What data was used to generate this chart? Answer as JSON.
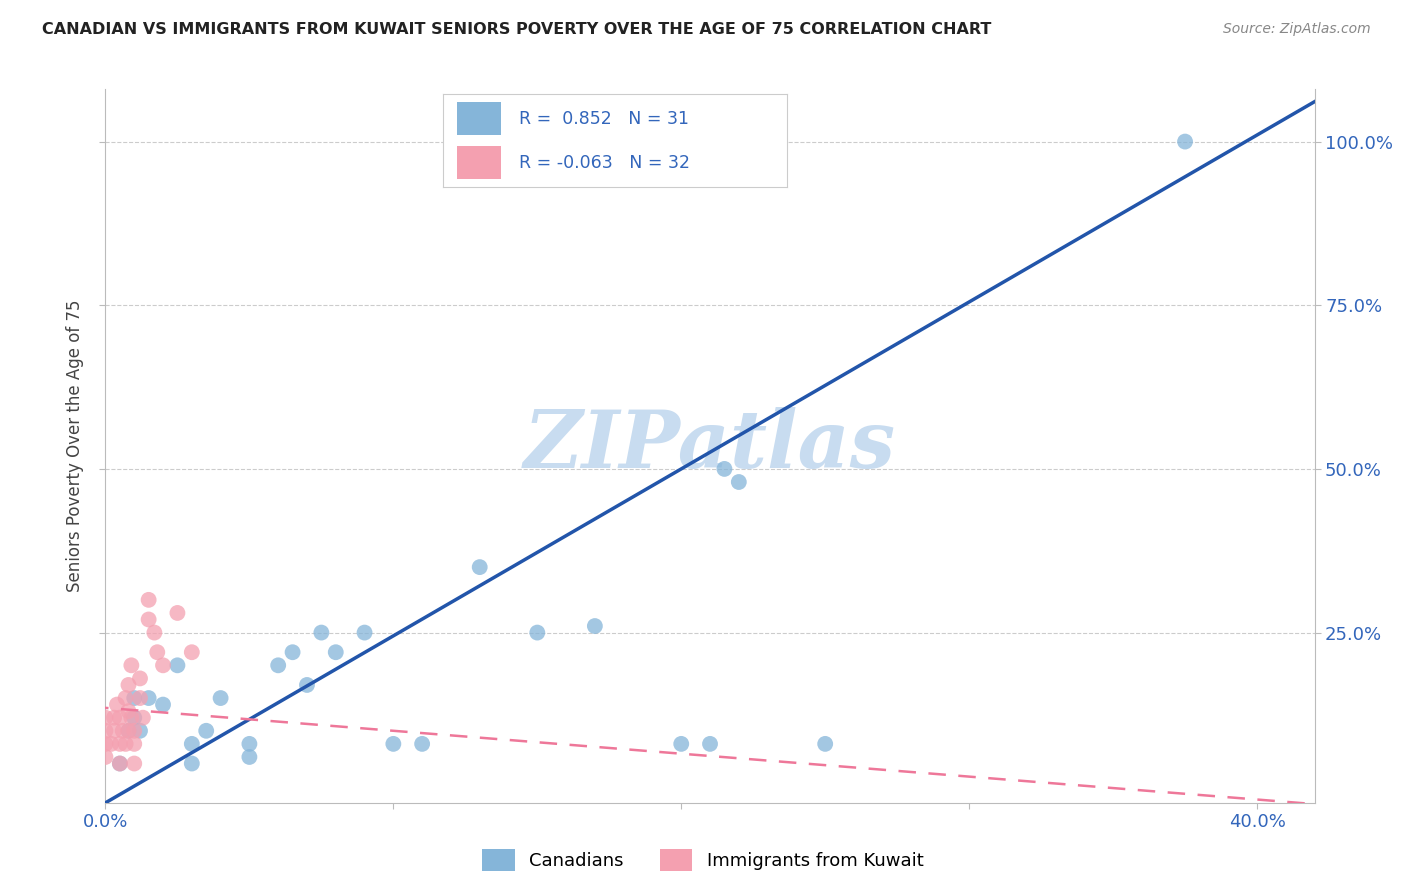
{
  "title": "CANADIAN VS IMMIGRANTS FROM KUWAIT SENIORS POVERTY OVER THE AGE OF 75 CORRELATION CHART",
  "source": "Source: ZipAtlas.com",
  "ylabel": "Seniors Poverty Over the Age of 75",
  "legend_r1_text": "R =  0.852   N = 31",
  "legend_r2_text": "R = -0.063   N = 32",
  "legend_label1": "Canadians",
  "legend_label2": "Immigrants from Kuwait",
  "xlim": [
    0.0,
    0.42
  ],
  "ylim": [
    -0.01,
    1.08
  ],
  "xtick_pos": [
    0.0,
    0.1,
    0.2,
    0.3,
    0.4
  ],
  "xtick_labels": [
    "0.0%",
    "",
    "",
    "",
    "40.0%"
  ],
  "ytick_pos": [
    0.25,
    0.5,
    0.75,
    1.0
  ],
  "ytick_labels": [
    "25.0%",
    "50.0%",
    "75.0%",
    "100.0%"
  ],
  "blue_color": "#85B5D9",
  "pink_color": "#F4A0B0",
  "trendline_blue": "#2255AA",
  "trendline_pink": "#EE7799",
  "watermark_color": "#C8DCF0",
  "canadians_x": [
    0.005,
    0.008,
    0.01,
    0.01,
    0.012,
    0.015,
    0.02,
    0.025,
    0.03,
    0.03,
    0.035,
    0.04,
    0.05,
    0.05,
    0.06,
    0.065,
    0.07,
    0.075,
    0.08,
    0.09,
    0.1,
    0.11,
    0.13,
    0.15,
    0.17,
    0.2,
    0.21,
    0.215,
    0.22,
    0.25,
    0.375
  ],
  "canadians_y": [
    0.05,
    0.1,
    0.12,
    0.15,
    0.1,
    0.15,
    0.14,
    0.2,
    0.05,
    0.08,
    0.1,
    0.15,
    0.08,
    0.06,
    0.2,
    0.22,
    0.17,
    0.25,
    0.22,
    0.25,
    0.08,
    0.08,
    0.35,
    0.25,
    0.26,
    0.08,
    0.08,
    0.5,
    0.48,
    0.08,
    1.0
  ],
  "kuwait_x": [
    0.0,
    0.0,
    0.0,
    0.0,
    0.002,
    0.003,
    0.003,
    0.004,
    0.005,
    0.005,
    0.005,
    0.006,
    0.007,
    0.007,
    0.008,
    0.008,
    0.008,
    0.009,
    0.009,
    0.01,
    0.01,
    0.01,
    0.012,
    0.012,
    0.013,
    0.015,
    0.015,
    0.017,
    0.018,
    0.02,
    0.025,
    0.03
  ],
  "kuwait_y": [
    0.06,
    0.08,
    0.1,
    0.12,
    0.08,
    0.1,
    0.12,
    0.14,
    0.05,
    0.08,
    0.12,
    0.1,
    0.08,
    0.15,
    0.1,
    0.13,
    0.17,
    0.12,
    0.2,
    0.05,
    0.08,
    0.1,
    0.15,
    0.18,
    0.12,
    0.27,
    0.3,
    0.25,
    0.22,
    0.2,
    0.28,
    0.22
  ]
}
